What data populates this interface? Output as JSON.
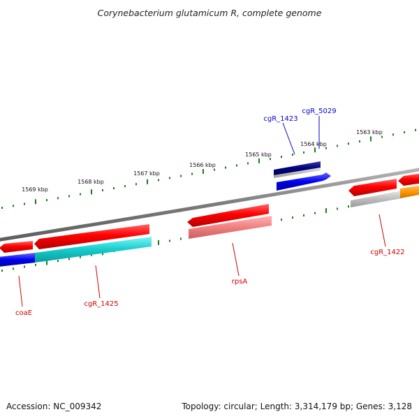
{
  "title": "Corynebacterium glutamicum R, complete genome",
  "footer": {
    "accession": "Accession: NC_009342",
    "topology": "Topology: circular; Length: 3,314,179 bp; Genes: 3,128"
  },
  "ruler_labels": [
    "1563 kbp",
    "1564 kbp",
    "1565 kbp",
    "1566 kbp",
    "1567 kbp",
    "1568 kbp",
    "1569 kbp"
  ],
  "gene_labels": {
    "cgR_1423": "cgR_1423",
    "cgR_5029": "cgR_5029",
    "cgR_1422": "cgR_1422",
    "rpsA": "rpsA",
    "cgR_1425": "cgR_1425",
    "coaE": "coaE"
  },
  "colors": {
    "outer_label": "#0000cc",
    "inner_label": "#cc0000",
    "ruler_tick": "#1a7a1a",
    "backbone": "#888888"
  }
}
